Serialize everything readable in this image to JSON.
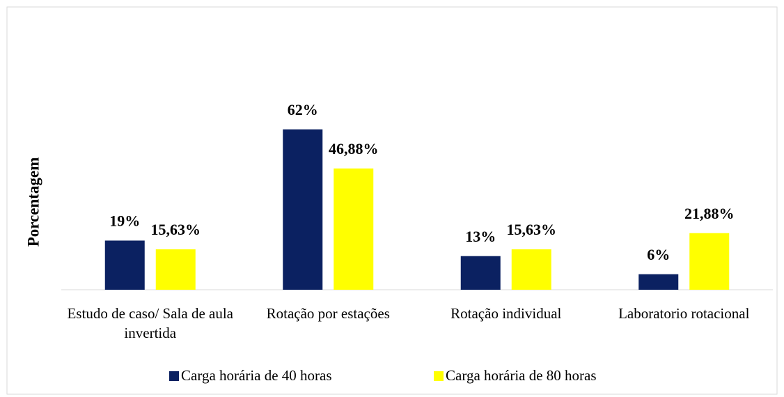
{
  "chart_data": {
    "type": "bar",
    "y_label": "Porcentagem",
    "categories": [
      "Estudo de caso/ Sala de aula invertida",
      "Rotação por estações",
      "Rotação individual",
      "Laboratorio rotacional"
    ],
    "series": [
      {
        "name": "Carga horária de 40 horas",
        "color": "#0b2161",
        "values": [
          19,
          62,
          13,
          6
        ],
        "value_labels": [
          "19%",
          "62%",
          "13%",
          "6%"
        ]
      },
      {
        "name": "Carga horária de 80 horas",
        "color": "#ffff00",
        "values": [
          15.63,
          46.88,
          15.63,
          21.88
        ],
        "value_labels": [
          "15,63%",
          "46,88%",
          "15,63%",
          "21,88%"
        ]
      }
    ],
    "ylim": [
      0,
      70
    ]
  }
}
